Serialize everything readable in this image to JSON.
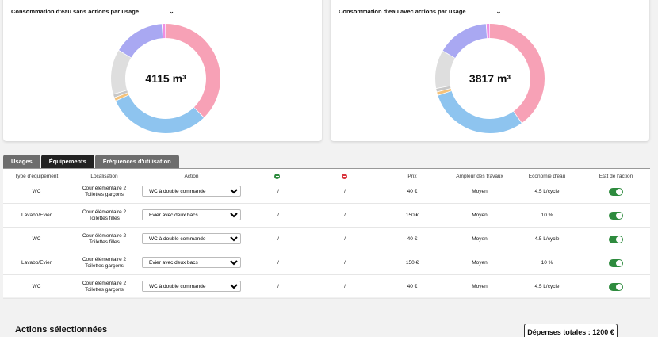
{
  "charts": [
    {
      "title": "Consommation d'eau sans actions par usage",
      "total": "4115 m³",
      "segments": [
        {
          "value": 37,
          "color": "#f7a1b6"
        },
        {
          "value": 30,
          "color": "#8ec4ef"
        },
        {
          "value": 1,
          "color": "#f4c27a"
        },
        {
          "value": 1,
          "color": "#c7c7c7"
        },
        {
          "value": 13,
          "color": "#dedede"
        },
        {
          "value": 15,
          "color": "#a9a8f2"
        },
        {
          "value": 1,
          "color": "#f08fe2"
        }
      ]
    },
    {
      "title": "Consommation d'eau avec actions par usage",
      "total": "3817 m³",
      "segments": [
        {
          "value": 39,
          "color": "#f7a1b6"
        },
        {
          "value": 29,
          "color": "#8ec4ef"
        },
        {
          "value": 1,
          "color": "#f4c27a"
        },
        {
          "value": 1,
          "color": "#c7c7c7"
        },
        {
          "value": 11,
          "color": "#dedede"
        },
        {
          "value": 15,
          "color": "#a9a8f2"
        },
        {
          "value": 1,
          "color": "#f08fe2"
        }
      ]
    }
  ],
  "dropdown_icon": "chevron-down-icon",
  "tabs": [
    "Usages",
    "Équipements",
    "Fréquences d'utilisation"
  ],
  "active_tab": 1,
  "columns": {
    "type": "Type d'équipement",
    "localisation": "Localisation",
    "action": "Action",
    "plus": "plus-circle-icon",
    "minus": "minus-circle-icon",
    "prix": "Prix",
    "ampleur": "Ampleur des travaux",
    "economie": "Economie d'eau",
    "etat": "Etat de l'action"
  },
  "rows": [
    {
      "type": "WC",
      "loc1": "Cour élémentaire 2",
      "loc2": "Toilettes garçons",
      "action": "WC à double commande",
      "plus": "/",
      "minus": "/",
      "prix": "40 €",
      "ampleur": "Moyen",
      "economie": "4.5 L/cycle",
      "on": true
    },
    {
      "type": "Lavabo/Evier",
      "loc1": "Cour élémentaire 2",
      "loc2": "Toilettes filles",
      "action": "Evier avec deux bacs",
      "plus": "/",
      "minus": "/",
      "prix": "150 €",
      "ampleur": "Moyen",
      "economie": "10 %",
      "on": true
    },
    {
      "type": "WC",
      "loc1": "Cour élémentaire 2",
      "loc2": "Toilettes filles",
      "action": "WC à double commande",
      "plus": "/",
      "minus": "/",
      "prix": "40 €",
      "ampleur": "Moyen",
      "economie": "4.5 L/cycle",
      "on": true
    },
    {
      "type": "Lavabo/Evier",
      "loc1": "Cour élémentaire 2",
      "loc2": "Toilettes garçons",
      "action": "Evier avec deux bacs",
      "plus": "/",
      "minus": "/",
      "prix": "150 €",
      "ampleur": "Moyen",
      "economie": "10 %",
      "on": true
    },
    {
      "type": "WC",
      "loc1": "Cour élémentaire 2",
      "loc2": "Toilettes garçons",
      "action": "WC à double commande",
      "plus": "/",
      "minus": "/",
      "prix": "40 €",
      "ampleur": "Moyen",
      "economie": "4.5 L/cycle",
      "on": true
    }
  ],
  "selected_title": "Actions sélectionnées",
  "total_label": "Dépenses totales : 1200 €",
  "colors": {
    "toggle_on": "#2e8b3e",
    "tab_active": "#222222",
    "tab_inactive": "#6d6d6d"
  }
}
